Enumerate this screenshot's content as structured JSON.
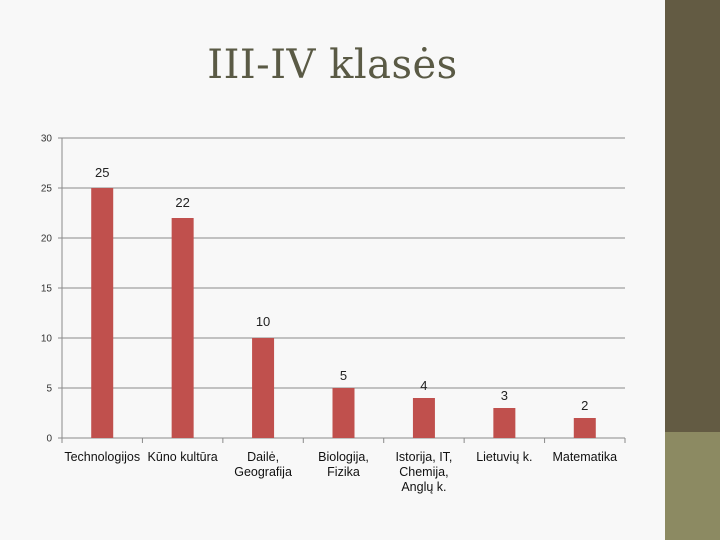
{
  "slide": {
    "title": "III-IV klasės",
    "colors": {
      "background": "#f8f8f8",
      "side_dark": "#635b43",
      "side_light": "#8c8a62",
      "bar": "#c0504d"
    }
  },
  "chart_data": {
    "type": "bar",
    "title": "",
    "xlabel": "",
    "ylabel": "",
    "ylim": [
      0,
      30
    ],
    "yticks": [
      0,
      5,
      10,
      15,
      20,
      25,
      30
    ],
    "grid": true,
    "legend": "none",
    "categories": [
      [
        "Technologijos"
      ],
      [
        "Kūno kultūra"
      ],
      [
        "Dailė,",
        "Geografija"
      ],
      [
        "Biologija,",
        "Fizika"
      ],
      [
        "Istorija, IT,",
        "Chemija,",
        "Anglų k."
      ],
      [
        "Lietuvių k."
      ],
      [
        "Matematika"
      ]
    ],
    "values": [
      25,
      22,
      10,
      5,
      4,
      3,
      2
    ],
    "data_labels": [
      "25",
      "22",
      "10",
      "5",
      "4",
      "3",
      "2"
    ]
  }
}
